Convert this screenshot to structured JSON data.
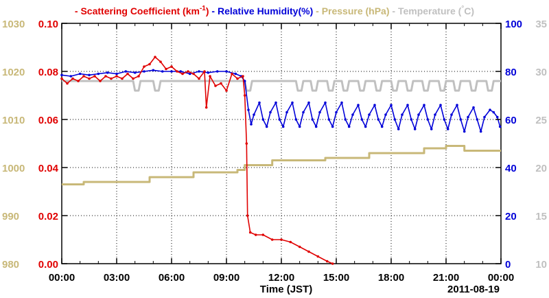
{
  "chart_data": {
    "type": "line",
    "date_label": "2011-08-19",
    "xlabel": "Time (JST)",
    "x_ticks": [
      "00:00",
      "03:00",
      "06:00",
      "09:00",
      "12:00",
      "15:00",
      "18:00",
      "21:00",
      "00:00"
    ],
    "xlim_hours": [
      0,
      24
    ],
    "grid": true,
    "legend_position": "top",
    "axes": {
      "pressure": {
        "ticks": [
          "980",
          "990",
          "1000",
          "1010",
          "1020",
          "1030"
        ],
        "range": [
          980,
          1030
        ],
        "color": "#c8b878"
      },
      "scattering": {
        "ticks": [
          "0.00",
          "0.02",
          "0.04",
          "0.06",
          "0.08",
          "0.10"
        ],
        "range": [
          0,
          0.1
        ],
        "color": "#e00000"
      },
      "humidity": {
        "ticks": [
          "0",
          "20",
          "40",
          "60",
          "80",
          "100"
        ],
        "range": [
          0,
          100
        ],
        "color": "#0000d8"
      },
      "temperature": {
        "ticks": [
          "10",
          "15",
          "20",
          "25",
          "30",
          "35"
        ],
        "range": [
          10,
          35
        ],
        "color": "#c0c0c0"
      }
    },
    "legend": [
      {
        "marker": "-",
        "text": "Scattering Coefficient (km",
        "sup": "-1",
        "close": ")",
        "color": "#e00000"
      },
      {
        "marker": "-",
        "text": "Relative Humidity(%)",
        "color": "#0000d8"
      },
      {
        "marker": "-",
        "text": "Pressure (hPa)",
        "color": "#c8b878"
      },
      {
        "marker": "-",
        "text": "Temperature (",
        "degree": "°",
        "close": "C)",
        "color": "#c0c0c0"
      }
    ],
    "series": [
      {
        "name": "Scattering Coefficient",
        "axis": "scattering",
        "color": "#e00000",
        "points": [
          [
            0.0,
            0.077
          ],
          [
            0.3,
            0.075
          ],
          [
            0.6,
            0.077
          ],
          [
            0.9,
            0.076
          ],
          [
            1.2,
            0.078
          ],
          [
            1.5,
            0.077
          ],
          [
            1.8,
            0.078
          ],
          [
            2.1,
            0.076
          ],
          [
            2.4,
            0.078
          ],
          [
            2.7,
            0.077
          ],
          [
            3.0,
            0.078
          ],
          [
            3.3,
            0.077
          ],
          [
            3.6,
            0.079
          ],
          [
            3.9,
            0.077
          ],
          [
            4.2,
            0.078
          ],
          [
            4.5,
            0.082
          ],
          [
            4.8,
            0.083
          ],
          [
            5.1,
            0.086
          ],
          [
            5.4,
            0.084
          ],
          [
            5.7,
            0.081
          ],
          [
            6.0,
            0.082
          ],
          [
            6.3,
            0.08
          ],
          [
            6.6,
            0.079
          ],
          [
            6.9,
            0.08
          ],
          [
            7.2,
            0.079
          ],
          [
            7.5,
            0.077
          ],
          [
            7.8,
            0.08
          ],
          [
            7.9,
            0.065
          ],
          [
            8.1,
            0.078
          ],
          [
            8.4,
            0.074
          ],
          [
            8.7,
            0.075
          ],
          [
            9.0,
            0.072
          ],
          [
            9.3,
            0.079
          ],
          [
            9.6,
            0.077
          ],
          [
            9.9,
            0.078
          ],
          [
            10.0,
            0.07
          ],
          [
            10.1,
            0.05
          ],
          [
            10.15,
            0.02
          ],
          [
            10.3,
            0.013
          ],
          [
            10.6,
            0.012
          ],
          [
            11.0,
            0.012
          ],
          [
            11.5,
            0.01
          ],
          [
            12.0,
            0.01
          ],
          [
            12.5,
            0.009
          ],
          [
            13.0,
            0.007
          ],
          [
            13.5,
            0.005
          ],
          [
            14.0,
            0.003
          ],
          [
            14.5,
            0.001
          ],
          [
            14.8,
            0.0
          ]
        ]
      },
      {
        "name": "Relative Humidity",
        "axis": "humidity",
        "color": "#0000d8",
        "points": [
          [
            0.0,
            78.5
          ],
          [
            0.5,
            78.0
          ],
          [
            1.0,
            79.0
          ],
          [
            1.5,
            78.5
          ],
          [
            2.0,
            79.0
          ],
          [
            2.5,
            79.5
          ],
          [
            3.0,
            79.0
          ],
          [
            3.5,
            80.0
          ],
          [
            4.0,
            79.5
          ],
          [
            4.5,
            80.0
          ],
          [
            5.0,
            80.5
          ],
          [
            5.5,
            80.0
          ],
          [
            6.0,
            80.0
          ],
          [
            6.5,
            80.0
          ],
          [
            7.0,
            79.0
          ],
          [
            7.5,
            80.0
          ],
          [
            8.0,
            79.5
          ],
          [
            8.5,
            80.0
          ],
          [
            9.0,
            80.0
          ],
          [
            9.5,
            79.0
          ],
          [
            9.8,
            78.0
          ],
          [
            10.0,
            76.0
          ],
          [
            10.2,
            64.0
          ],
          [
            10.35,
            58.0
          ],
          [
            10.5,
            62.0
          ],
          [
            10.8,
            67.0
          ],
          [
            11.0,
            60.0
          ],
          [
            11.2,
            57.0
          ],
          [
            11.4,
            63.0
          ],
          [
            11.7,
            67.0
          ],
          [
            11.9,
            60.0
          ],
          [
            12.1,
            57.0
          ],
          [
            12.3,
            63.0
          ],
          [
            12.6,
            67.0
          ],
          [
            12.8,
            60.0
          ],
          [
            13.0,
            57.0
          ],
          [
            13.2,
            63.0
          ],
          [
            13.5,
            67.0
          ],
          [
            13.7,
            60.0
          ],
          [
            13.9,
            57.0
          ],
          [
            14.1,
            63.0
          ],
          [
            14.4,
            67.0
          ],
          [
            14.6,
            60.0
          ],
          [
            14.8,
            57.0
          ],
          [
            15.0,
            63.0
          ],
          [
            15.3,
            67.0
          ],
          [
            15.5,
            60.0
          ],
          [
            15.7,
            57.0
          ],
          [
            15.9,
            62.0
          ],
          [
            16.2,
            66.0
          ],
          [
            16.4,
            60.0
          ],
          [
            16.6,
            57.0
          ],
          [
            16.8,
            62.0
          ],
          [
            17.1,
            66.0
          ],
          [
            17.3,
            60.0
          ],
          [
            17.5,
            57.0
          ],
          [
            17.7,
            62.0
          ],
          [
            18.0,
            66.0
          ],
          [
            18.2,
            60.0
          ],
          [
            18.4,
            56.0
          ],
          [
            18.6,
            62.0
          ],
          [
            18.9,
            66.0
          ],
          [
            19.1,
            60.0
          ],
          [
            19.3,
            56.0
          ],
          [
            19.5,
            62.0
          ],
          [
            19.8,
            66.0
          ],
          [
            20.0,
            60.0
          ],
          [
            20.2,
            56.0
          ],
          [
            20.4,
            62.0
          ],
          [
            20.7,
            66.0
          ],
          [
            20.9,
            60.0
          ],
          [
            21.1,
            56.0
          ],
          [
            21.3,
            62.0
          ],
          [
            21.6,
            66.0
          ],
          [
            21.8,
            60.0
          ],
          [
            22.0,
            55.0
          ],
          [
            22.2,
            61.0
          ],
          [
            22.5,
            65.0
          ],
          [
            22.7,
            60.0
          ],
          [
            22.9,
            55.0
          ],
          [
            23.1,
            61.0
          ],
          [
            23.4,
            64.0
          ],
          [
            23.6,
            63.0
          ],
          [
            23.8,
            61.0
          ],
          [
            23.95,
            57.0
          ]
        ]
      },
      {
        "name": "Pressure",
        "axis": "pressure",
        "color": "#c8b878",
        "points": [
          [
            0.0,
            996.5
          ],
          [
            1.2,
            996.5
          ],
          [
            1.2,
            997.0
          ],
          [
            4.8,
            997.0
          ],
          [
            4.8,
            998.0
          ],
          [
            7.2,
            998.0
          ],
          [
            7.2,
            999.0
          ],
          [
            9.6,
            999.0
          ],
          [
            9.6,
            999.5
          ],
          [
            10.0,
            999.5
          ],
          [
            10.0,
            1000.5
          ],
          [
            11.5,
            1000.5
          ],
          [
            11.5,
            1001.5
          ],
          [
            14.4,
            1001.5
          ],
          [
            14.4,
            1002.0
          ],
          [
            16.8,
            1002.0
          ],
          [
            16.8,
            1003.0
          ],
          [
            19.8,
            1003.0
          ],
          [
            19.8,
            1004.0
          ],
          [
            21.0,
            1004.0
          ],
          [
            21.0,
            1004.5
          ],
          [
            22.0,
            1004.5
          ],
          [
            22.0,
            1003.5
          ],
          [
            24.0,
            1003.5
          ]
        ]
      },
      {
        "name": "Temperature",
        "axis": "temperature",
        "color": "#c0c0c0",
        "points": [
          [
            0.0,
            29.0
          ],
          [
            3.9,
            29.0
          ],
          [
            4.0,
            28.0
          ],
          [
            4.2,
            28.0
          ],
          [
            4.3,
            29.0
          ],
          [
            5.0,
            29.0
          ],
          [
            5.1,
            28.0
          ],
          [
            5.3,
            28.0
          ],
          [
            5.4,
            29.0
          ],
          [
            10.0,
            29.0
          ],
          [
            10.1,
            28.0
          ],
          [
            10.3,
            28.0
          ],
          [
            10.4,
            29.0
          ],
          [
            12.8,
            29.0
          ],
          [
            12.9,
            28.0
          ],
          [
            13.1,
            28.0
          ],
          [
            13.2,
            29.0
          ],
          [
            13.6,
            29.0
          ],
          [
            13.7,
            28.0
          ],
          [
            13.9,
            28.0
          ],
          [
            14.0,
            29.0
          ],
          [
            14.5,
            29.0
          ],
          [
            14.6,
            28.0
          ],
          [
            14.8,
            28.0
          ],
          [
            14.9,
            29.0
          ],
          [
            15.3,
            29.0
          ],
          [
            15.4,
            28.0
          ],
          [
            15.6,
            28.0
          ],
          [
            15.7,
            29.0
          ],
          [
            16.2,
            29.0
          ],
          [
            16.3,
            28.0
          ],
          [
            16.5,
            28.0
          ],
          [
            16.6,
            29.0
          ],
          [
            17.1,
            29.0
          ],
          [
            17.2,
            28.0
          ],
          [
            17.4,
            28.0
          ],
          [
            17.5,
            29.0
          ],
          [
            18.0,
            29.0
          ],
          [
            18.1,
            28.0
          ],
          [
            18.3,
            28.0
          ],
          [
            18.4,
            29.0
          ],
          [
            18.8,
            29.0
          ],
          [
            18.9,
            28.0
          ],
          [
            19.1,
            28.0
          ],
          [
            19.2,
            29.0
          ],
          [
            19.7,
            29.0
          ],
          [
            19.8,
            28.0
          ],
          [
            20.0,
            28.0
          ],
          [
            20.1,
            29.0
          ],
          [
            20.6,
            29.0
          ],
          [
            20.7,
            28.0
          ],
          [
            20.9,
            28.0
          ],
          [
            21.0,
            29.0
          ],
          [
            21.4,
            29.0
          ],
          [
            21.5,
            28.0
          ],
          [
            21.7,
            28.0
          ],
          [
            21.8,
            29.0
          ],
          [
            22.3,
            29.0
          ],
          [
            22.4,
            28.0
          ],
          [
            22.6,
            28.0
          ],
          [
            22.7,
            29.0
          ],
          [
            23.2,
            29.0
          ],
          [
            23.3,
            28.0
          ],
          [
            23.5,
            28.0
          ],
          [
            23.6,
            29.0
          ],
          [
            24.0,
            29.0
          ]
        ]
      }
    ]
  }
}
